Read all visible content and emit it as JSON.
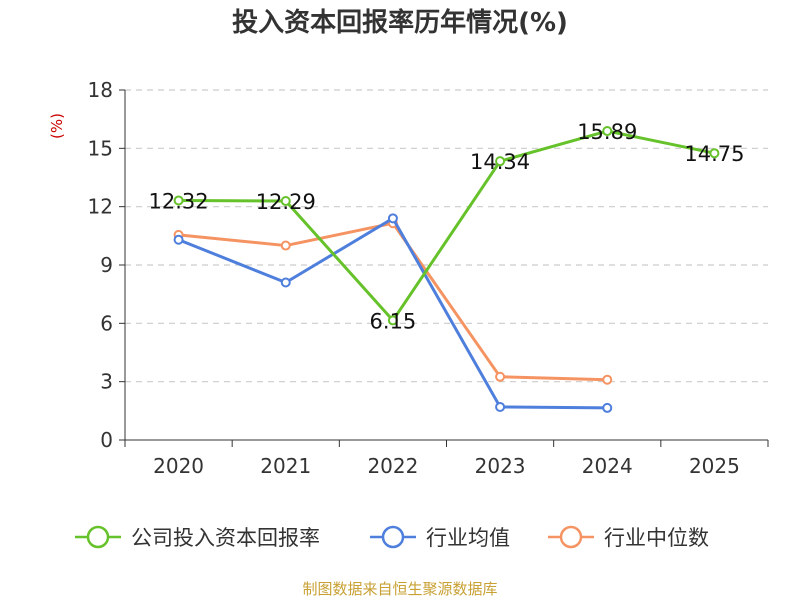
{
  "title": "投入资本回报率历年情况(%)",
  "source": "制图数据来自恒生聚源数据库",
  "colors": {
    "company": "#66c22a",
    "industry_avg": "#4f7fdc",
    "industry_median": "#f59462",
    "grid": "#cccccc",
    "axis": "#333333",
    "unit": "#cc0000"
  },
  "chart_data": {
    "type": "line",
    "title": "投入资本回报率历年情况(%)",
    "ylabel": "(%)",
    "xlabel": "",
    "categories": [
      "2020",
      "2021",
      "2022",
      "2023",
      "2024",
      "2025"
    ],
    "ylim": [
      0,
      18
    ],
    "yticks": [
      0,
      3,
      6,
      9,
      12,
      15,
      18
    ],
    "grid": true,
    "legend_position": "bottom",
    "series": [
      {
        "name": "公司投入资本回报率",
        "color": "#66c22a",
        "values": [
          12.32,
          12.29,
          6.15,
          14.34,
          15.89,
          14.75
        ],
        "labels": [
          "12.32",
          "12.29",
          "6.15",
          "14.34",
          "15.89",
          "14.75"
        ]
      },
      {
        "name": "行业均值",
        "color": "#4f7fdc",
        "values": [
          10.3,
          8.1,
          11.4,
          1.7,
          1.65,
          null
        ]
      },
      {
        "name": "行业中位数",
        "color": "#f59462",
        "values": [
          10.55,
          10.0,
          11.15,
          3.25,
          3.1,
          null
        ]
      }
    ]
  }
}
